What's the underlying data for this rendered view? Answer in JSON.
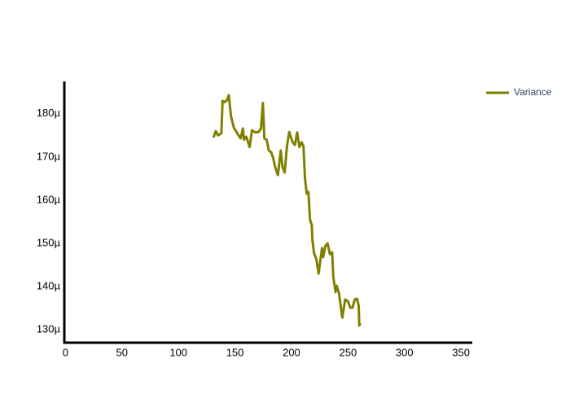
{
  "chart_data": {
    "type": "line",
    "x": [
      131,
      133,
      135,
      138,
      139,
      141,
      143,
      144.5,
      146.5,
      149,
      152,
      155,
      157,
      158,
      160,
      163,
      165,
      168,
      171,
      173,
      174.7,
      176,
      178,
      180,
      182,
      184,
      185.5,
      188,
      190.5,
      192,
      194,
      196,
      198,
      201,
      203,
      205,
      207,
      209,
      210.6,
      212,
      213.5,
      215,
      216.4,
      218,
      218.5,
      220,
      222,
      224,
      227,
      228,
      230,
      232,
      234,
      236,
      237,
      239,
      240,
      242,
      244,
      245,
      247.5,
      250,
      252,
      254,
      256,
      258,
      259.5,
      260,
      261
    ],
    "series": [
      {
        "name": "Variance",
        "color": "#808000",
        "values": [
          174.5,
          176,
          175,
          175.5,
          183,
          182.7,
          183.2,
          184.3,
          179.4,
          176.8,
          175.5,
          174.3,
          176.6,
          174,
          174.7,
          172.3,
          176.2,
          175.7,
          175.8,
          176.6,
          182.5,
          174.3,
          174,
          171.5,
          171.1,
          169.6,
          167.7,
          165.8,
          171.5,
          167.7,
          166.4,
          172.5,
          175.8,
          173.4,
          172.8,
          175.7,
          172.3,
          173.4,
          172.5,
          164.9,
          161.5,
          161.9,
          155.5,
          154.2,
          150.8,
          147.7,
          146.4,
          143,
          148.9,
          146.8,
          149.4,
          150,
          147.5,
          147.9,
          142.3,
          138.7,
          140.2,
          138.5,
          134.7,
          132.8,
          137,
          136.6,
          135.1,
          135.1,
          137,
          137.2,
          135.5,
          131,
          131.5
        ]
      }
    ],
    "xlim": [
      -1,
      360
    ],
    "xticks": [
      0,
      50,
      100,
      150,
      200,
      250,
      300,
      350
    ],
    "ylim": [
      127,
      187.5
    ],
    "yticks": [
      {
        "value": 130,
        "label": "130µ"
      },
      {
        "value": 140,
        "label": "140µ"
      },
      {
        "value": 150,
        "label": "150µ"
      },
      {
        "value": 160,
        "label": "160µ"
      },
      {
        "value": 170,
        "label": "170µ"
      },
      {
        "value": 180,
        "label": "180µ"
      }
    ],
    "legend": "top-right",
    "grid": false
  }
}
